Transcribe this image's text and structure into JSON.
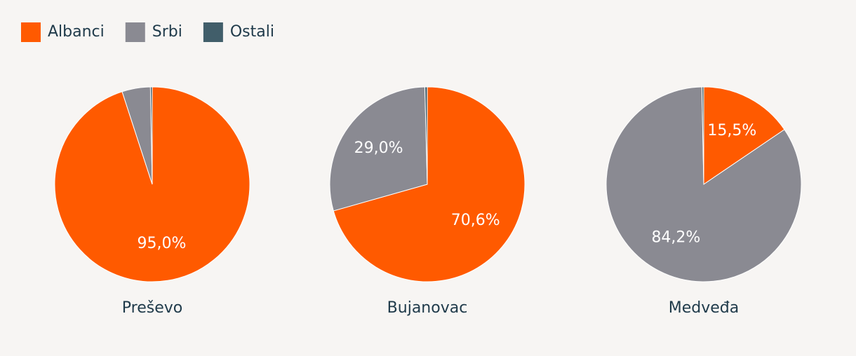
{
  "chart_data": [
    {
      "type": "pie",
      "title": "Preševo",
      "categories": [
        "Albanci",
        "Srbi",
        "Ostali"
      ],
      "values": [
        95.0,
        4.7,
        0.3
      ],
      "value_labels": [
        "95,0%",
        null,
        null
      ],
      "colors": [
        "#ff5a00",
        "#8a8a92",
        "#415e6a"
      ]
    },
    {
      "type": "pie",
      "title": "Bujanovac",
      "categories": [
        "Albanci",
        "Srbi",
        "Ostali"
      ],
      "values": [
        70.6,
        29.0,
        0.4
      ],
      "value_labels": [
        "70,6%",
        "29,0%",
        null
      ],
      "colors": [
        "#ff5a00",
        "#8a8a92",
        "#415e6a"
      ]
    },
    {
      "type": "pie",
      "title": "Medveđa",
      "categories": [
        "Albanci",
        "Srbi",
        "Ostali"
      ],
      "values": [
        15.5,
        84.2,
        0.3
      ],
      "value_labels": [
        "15,5%",
        "84,2%",
        null
      ],
      "colors": [
        "#ff5a00",
        "#8a8a92",
        "#415e6a"
      ]
    }
  ]
}
